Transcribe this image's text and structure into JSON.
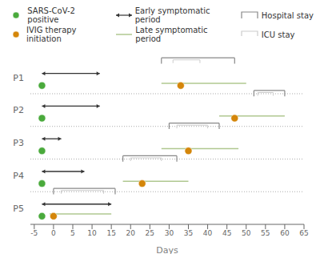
{
  "chart_data": {
    "type": "timeline",
    "categories": [
      "P1",
      "P2",
      "P3",
      "P4",
      "P5"
    ],
    "xlabel": "Days",
    "xlim": [
      -6,
      65
    ],
    "xticks": [
      -5,
      0,
      5,
      10,
      15,
      20,
      25,
      30,
      35,
      40,
      45,
      50,
      55,
      60,
      65
    ],
    "grid": true,
    "legend": "top",
    "series": [
      {
        "name": "SARS-CoV-2 positive",
        "type": "scatter",
        "color": "#4aaa3c",
        "values": [
          -3,
          -3,
          -3,
          -3,
          -3
        ]
      },
      {
        "name": "IVIG therapy initiation",
        "type": "scatter",
        "color": "#d4860a",
        "values": [
          33,
          47,
          35,
          23,
          0
        ]
      },
      {
        "name": "Early symptomatic period",
        "type": "range",
        "marker": "arrow",
        "color": "#333333",
        "values": [
          [
            -3,
            12
          ],
          [
            -3,
            12
          ],
          [
            -3,
            2
          ],
          [
            -3,
            8
          ],
          [
            -3,
            15
          ]
        ]
      },
      {
        "name": "Late symptomatic period",
        "type": "range",
        "color": "#b0c890",
        "values": [
          [
            28,
            50
          ],
          [
            43,
            60
          ],
          [
            28,
            48
          ],
          [
            18,
            35
          ],
          [
            -1,
            15
          ]
        ]
      },
      {
        "name": "Hospital stay",
        "type": "bracket",
        "color": "#888888",
        "values": [
          [
            28,
            47
          ],
          [
            52,
            60
          ],
          [
            30,
            43
          ],
          [
            18,
            32
          ],
          [
            0,
            16
          ]
        ]
      },
      {
        "name": "ICU stay",
        "type": "bracket",
        "color": "#cccccc",
        "values": [
          [
            31,
            38
          ],
          [
            53,
            57
          ],
          [
            32,
            40
          ],
          [
            20,
            28
          ],
          [
            2,
            13
          ]
        ]
      }
    ]
  }
}
